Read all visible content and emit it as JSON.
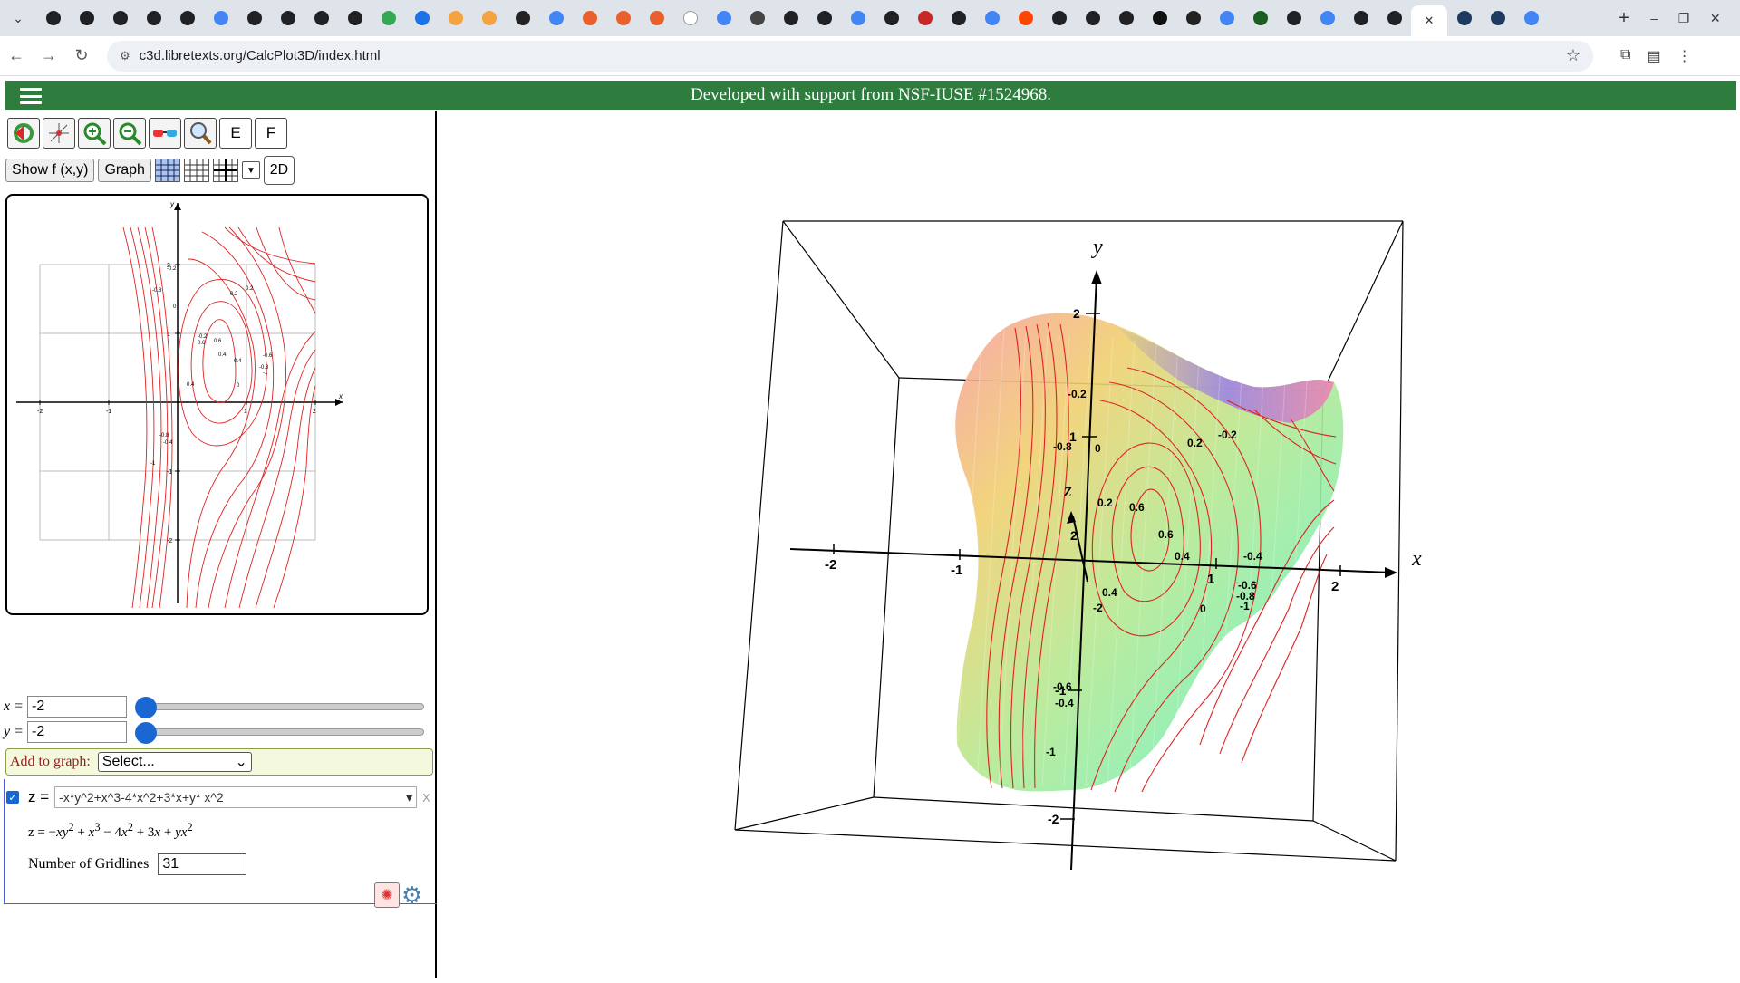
{
  "browser": {
    "url": "c3d.libretexts.org/CalcPlot3D/index.html",
    "tab_icons": [
      "ring",
      "ring",
      "ring",
      "ring",
      "ring",
      "G",
      "ring",
      "ring",
      "ring",
      "ring",
      "link",
      "snow",
      "umbrella",
      "umbrella",
      "SHY",
      "G",
      "mathworks",
      "mathworks",
      "mathworks",
      "W",
      "G",
      "noslash",
      "ring",
      "ring",
      "G",
      "ring",
      "red",
      "ring",
      "G",
      "reddit",
      "ring",
      "ring",
      "M",
      "cmyk",
      "CRT",
      "G",
      "X",
      "ring",
      "G",
      "ring",
      "ring",
      "active",
      "react",
      "react",
      "G"
    ],
    "tab_colors": [
      "#202124",
      "#202124",
      "#202124",
      "#202124",
      "#202124",
      "#4285f4",
      "#202124",
      "#202124",
      "#202124",
      "#202124",
      "#34a853",
      "#1a73e8",
      "#f4a340",
      "#f4a340",
      "#222",
      "#4285f4",
      "#e8612c",
      "#e8612c",
      "#e8612c",
      "#fff",
      "#4285f4",
      "#444",
      "#202124",
      "#202124",
      "#4285f4",
      "#202124",
      "#c62828",
      "#202124",
      "#4285f4",
      "#ff4500",
      "#202124",
      "#202124",
      "#222",
      "#111",
      "#222",
      "#4285f4",
      "#1b5e20",
      "#202124",
      "#4285f4",
      "#202124",
      "#202124",
      "#fff",
      "#1e3a5f",
      "#1e3a5f",
      "#4285f4"
    ]
  },
  "banner": {
    "text": "Developed with support from NSF-IUSE #1524968."
  },
  "toolbar": {
    "letter_e": "E",
    "letter_f": "F",
    "show_fxy": "Show f (x,y)",
    "graph": "Graph",
    "two_d": "2D"
  },
  "sliders": {
    "x": {
      "label": "x =",
      "value": "-2"
    },
    "y": {
      "label": "y =",
      "value": "-2"
    }
  },
  "add_graph": {
    "label": "Add to graph:",
    "selected": "Select..."
  },
  "function": {
    "z_label": "z =",
    "expression": "-x*y^2+x^3-4*x^2+3*x+y* x^2",
    "close": "X",
    "gridlines_label": "Number of Gridlines",
    "gridlines_value": "31"
  },
  "plot2d": {
    "x_ticks": [
      "-2",
      "-1",
      "1",
      "2"
    ],
    "y_ticks": [
      "2",
      "1",
      "-1",
      "-2"
    ],
    "axis_x": "x",
    "axis_y": "y",
    "contour_labels": [
      "-0.2",
      "-0.8",
      "0",
      "0.2",
      "0.2",
      "-0.2",
      "0.6",
      "0.6",
      "0.4",
      "-0.4",
      "-0.6",
      "-0.8",
      "-1",
      "0.4",
      "0",
      "-0.8",
      "-0.4",
      "-1"
    ]
  },
  "plot3d": {
    "axis_x": "x",
    "axis_y": "y",
    "axis_z": "z",
    "x_ticks": [
      "-2",
      "-1",
      "1",
      "2"
    ],
    "y_ticks": [
      "2",
      "1",
      "-1",
      "-2"
    ],
    "z_tick": "2",
    "contour_labels": [
      "-0.2",
      "-0.8",
      "0",
      "0.2",
      "-0.2",
      "0.2",
      "0.6",
      "0.6",
      "0.4",
      "-0.4",
      "-0.6",
      "-0.8",
      "-1",
      "0.4",
      "0",
      "-1",
      "-2",
      "-0.6",
      "-0.4"
    ]
  }
}
